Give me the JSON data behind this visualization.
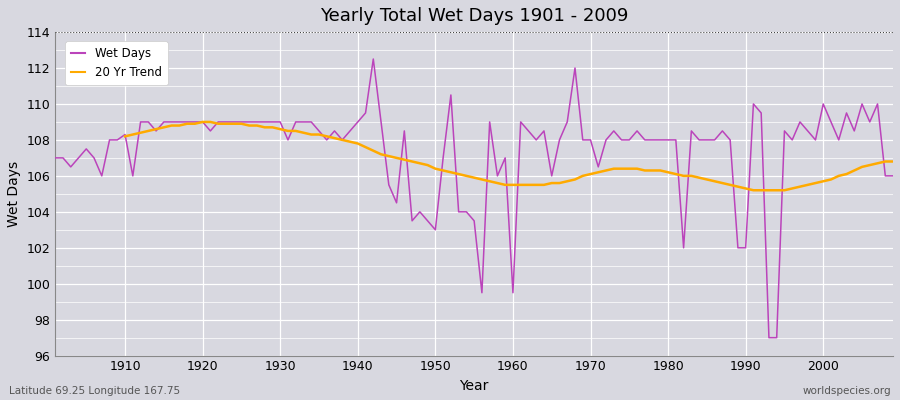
{
  "title": "Yearly Total Wet Days 1901 - 2009",
  "xlabel": "Year",
  "ylabel": "Wet Days",
  "legend_labels": [
    "Wet Days",
    "20 Yr Trend"
  ],
  "line_color_wet": "#bb44bb",
  "line_color_trend": "#ffaa00",
  "bg_color": "#e0e0e8",
  "plot_bg_color": "#dcdce4",
  "ylim": [
    96,
    114
  ],
  "yticks": [
    96,
    98,
    100,
    102,
    104,
    106,
    108,
    110,
    112,
    114
  ],
  "xlim": [
    1901,
    2009
  ],
  "footnote_left": "Latitude 69.25 Longitude 167.75",
  "footnote_right": "worldspecies.org",
  "years": [
    1901,
    1902,
    1903,
    1904,
    1905,
    1906,
    1907,
    1908,
    1909,
    1910,
    1911,
    1912,
    1913,
    1914,
    1915,
    1916,
    1917,
    1918,
    1919,
    1920,
    1921,
    1922,
    1923,
    1924,
    1925,
    1926,
    1927,
    1928,
    1929,
    1930,
    1931,
    1932,
    1933,
    1934,
    1935,
    1936,
    1937,
    1938,
    1939,
    1940,
    1941,
    1942,
    1943,
    1944,
    1945,
    1946,
    1947,
    1948,
    1949,
    1950,
    1951,
    1952,
    1953,
    1954,
    1955,
    1956,
    1957,
    1958,
    1959,
    1960,
    1961,
    1962,
    1963,
    1964,
    1965,
    1966,
    1967,
    1968,
    1969,
    1970,
    1971,
    1972,
    1973,
    1974,
    1975,
    1976,
    1977,
    1978,
    1979,
    1980,
    1981,
    1982,
    1983,
    1984,
    1985,
    1986,
    1987,
    1988,
    1989,
    1990,
    1991,
    1992,
    1993,
    1994,
    1995,
    1996,
    1997,
    1998,
    1999,
    2000,
    2001,
    2002,
    2003,
    2004,
    2005,
    2006,
    2007,
    2008,
    2009
  ],
  "wet_days": [
    107,
    107,
    106.5,
    107,
    107.5,
    107,
    106,
    108,
    108,
    108.3,
    106,
    109,
    109,
    108.5,
    109,
    109,
    109,
    109,
    109,
    109,
    108.5,
    109,
    109,
    109,
    109,
    109,
    109,
    109,
    109,
    109,
    108,
    109,
    109,
    109,
    108.5,
    108,
    108.5,
    108,
    108.5,
    109,
    109.5,
    112.5,
    109,
    105.5,
    104.5,
    108.5,
    103.5,
    104,
    103.5,
    103,
    107,
    110.5,
    104,
    104,
    103.5,
    99.5,
    109,
    106,
    107,
    99.5,
    109,
    108.5,
    108,
    108.5,
    106,
    108,
    109,
    112,
    108,
    108,
    106.5,
    108,
    108.5,
    108,
    108,
    108.5,
    108,
    108,
    108,
    108,
    108,
    102,
    108.5,
    108,
    108,
    108,
    108.5,
    108,
    102,
    102,
    110,
    109.5,
    97,
    97,
    108.5,
    108,
    109,
    108.5,
    108,
    110,
    109,
    108,
    109.5,
    108.5,
    110,
    109,
    110,
    106,
    106
  ],
  "trend_years": [
    1910,
    1911,
    1912,
    1913,
    1914,
    1915,
    1916,
    1917,
    1918,
    1919,
    1920,
    1921,
    1922,
    1923,
    1924,
    1925,
    1926,
    1927,
    1928,
    1929,
    1930,
    1931,
    1932,
    1933,
    1934,
    1935,
    1936,
    1937,
    1938,
    1939,
    1940,
    1941,
    1942,
    1943,
    1944,
    1945,
    1946,
    1947,
    1948,
    1949,
    1950,
    1951,
    1952,
    1953,
    1954,
    1955,
    1956,
    1957,
    1958,
    1959,
    1960,
    1961,
    1962,
    1963,
    1964,
    1965,
    1966,
    1967,
    1968,
    1969,
    1970,
    1971,
    1972,
    1973,
    1974,
    1975,
    1976,
    1977,
    1978,
    1979,
    1980,
    1981,
    1982,
    1983,
    1984,
    1985,
    1986,
    1987,
    1988,
    1989,
    1990,
    1991,
    1992,
    1993,
    1994,
    1995,
    1996,
    1997,
    1998,
    1999,
    2000,
    2001,
    2002,
    2003,
    2004,
    2005,
    2006,
    2007,
    2008,
    2009
  ],
  "trend_vals": [
    108.2,
    108.3,
    108.4,
    108.5,
    108.6,
    108.7,
    108.8,
    108.8,
    108.9,
    108.9,
    109.0,
    109.0,
    108.9,
    108.9,
    108.9,
    108.9,
    108.8,
    108.8,
    108.7,
    108.7,
    108.6,
    108.5,
    108.5,
    108.4,
    108.3,
    108.3,
    108.2,
    108.1,
    108.0,
    107.9,
    107.8,
    107.6,
    107.4,
    107.2,
    107.1,
    107.0,
    106.9,
    106.8,
    106.7,
    106.6,
    106.4,
    106.3,
    106.2,
    106.1,
    106.0,
    105.9,
    105.8,
    105.7,
    105.6,
    105.5,
    105.5,
    105.5,
    105.5,
    105.5,
    105.5,
    105.6,
    105.6,
    105.7,
    105.8,
    106.0,
    106.1,
    106.2,
    106.3,
    106.4,
    106.4,
    106.4,
    106.4,
    106.3,
    106.3,
    106.3,
    106.2,
    106.1,
    106.0,
    106.0,
    105.9,
    105.8,
    105.7,
    105.6,
    105.5,
    105.4,
    105.3,
    105.2,
    105.2,
    105.2,
    105.2,
    105.2,
    105.3,
    105.4,
    105.5,
    105.6,
    105.7,
    105.8,
    106.0,
    106.1,
    106.3,
    106.5,
    106.6,
    106.7,
    106.8,
    106.8
  ]
}
